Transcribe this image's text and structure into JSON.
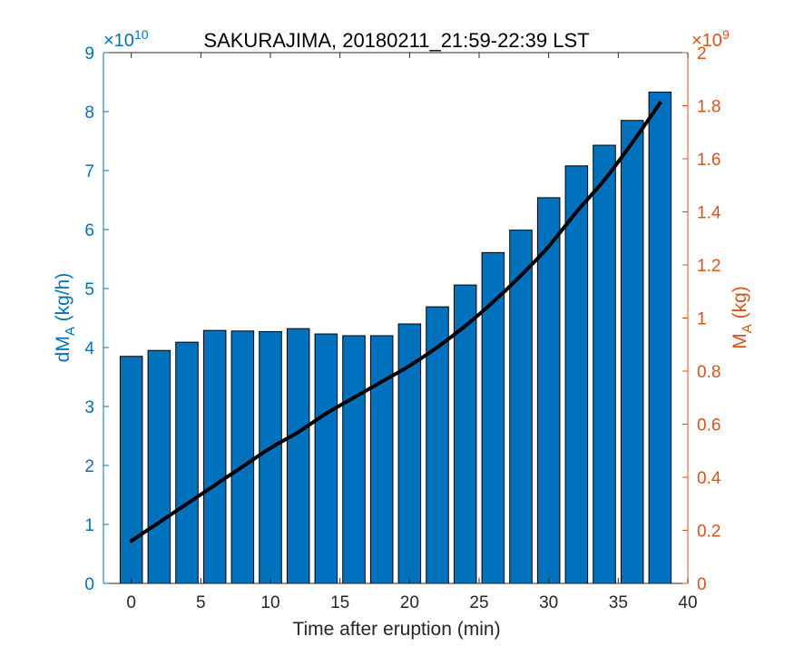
{
  "chart_data": {
    "type": "bar",
    "title": "SAKURAJIMA, 20180211_21:59-22:39 LST",
    "xlabel": "Time after eruption (min)",
    "ylabel_left": {
      "main": "dM",
      "sub": "A",
      "rest": " (kg/h)"
    },
    "ylabel_right": {
      "main": "M",
      "sub": "A",
      "rest": " (kg)"
    },
    "left_exponent": {
      "prefix": "×10",
      "power": "10"
    },
    "right_exponent": {
      "prefix": "×10",
      "power": "9"
    },
    "xlim": [
      -2,
      40
    ],
    "xticks": [
      0,
      5,
      10,
      15,
      20,
      25,
      30,
      35,
      40
    ],
    "ylim_left": [
      0,
      9
    ],
    "yticks_left": [
      0,
      1,
      2,
      3,
      4,
      5,
      6,
      7,
      8,
      9
    ],
    "ylim_right": [
      0,
      2
    ],
    "yticks_right": [
      0,
      0.2,
      0.4,
      0.6,
      0.8,
      1,
      1.2,
      1.4,
      1.6,
      1.8,
      2
    ],
    "bars": {
      "x": [
        0,
        2,
        4,
        6,
        8,
        10,
        12,
        14,
        16,
        18,
        20,
        22,
        24,
        26,
        28,
        30,
        32,
        34,
        36,
        38
      ],
      "values": [
        3.85,
        3.95,
        4.09,
        4.29,
        4.28,
        4.27,
        4.32,
        4.23,
        4.2,
        4.2,
        4.4,
        4.69,
        5.06,
        5.61,
        5.99,
        6.54,
        7.08,
        7.43,
        7.85,
        8.33
      ],
      "width": 1.6,
      "color": "#0072BD"
    },
    "line": {
      "x": [
        0,
        2,
        4,
        6,
        8,
        10,
        12,
        14,
        16,
        18,
        20,
        22,
        24,
        26,
        28,
        30,
        32,
        34,
        36,
        38
      ],
      "values": [
        0.16,
        0.23,
        0.3,
        0.37,
        0.44,
        0.51,
        0.57,
        0.64,
        0.7,
        0.76,
        0.82,
        0.89,
        0.97,
        1.06,
        1.16,
        1.27,
        1.4,
        1.52,
        1.66,
        1.81
      ],
      "color": "#000000"
    },
    "left_axis_color": "#0072BD",
    "right_axis_color": "#D95319"
  }
}
